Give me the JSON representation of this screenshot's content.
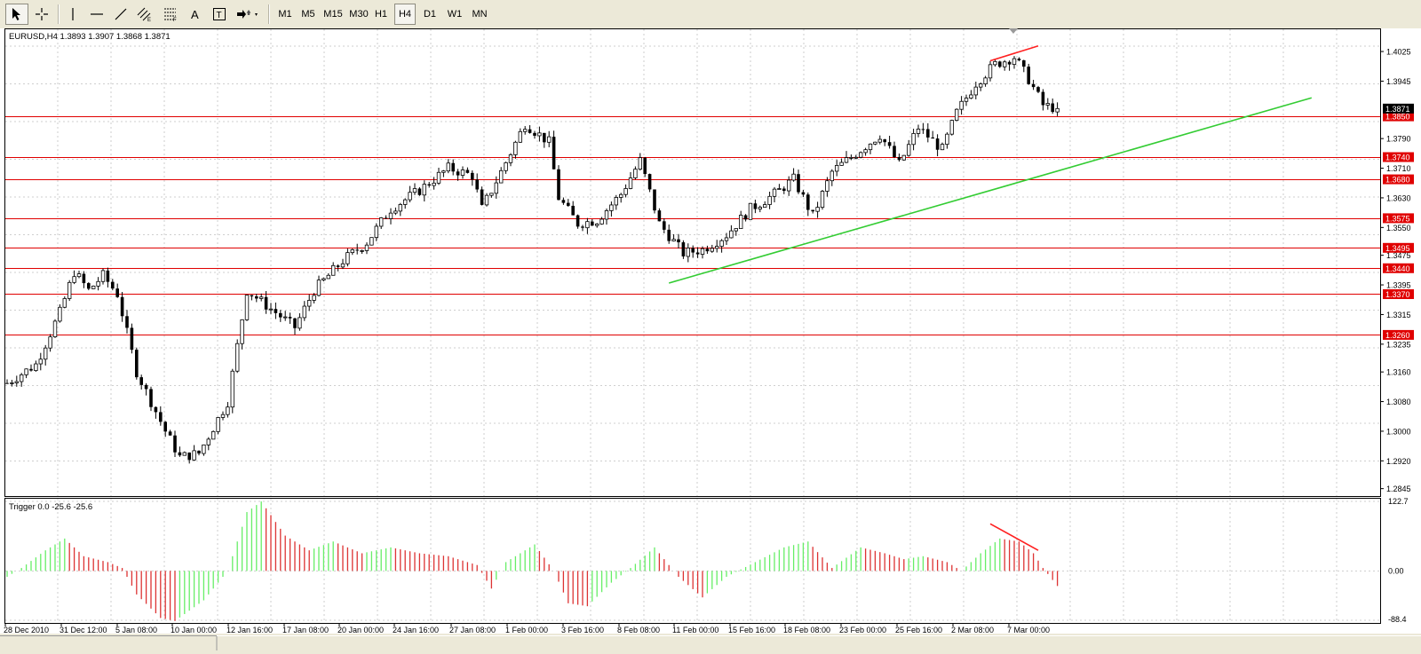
{
  "toolbar": {
    "tools": [
      {
        "name": "cursor-tool",
        "icon": "arrow-cursor-icon"
      },
      {
        "name": "crosshair-tool",
        "icon": "crosshair-icon"
      },
      {
        "name": "vertical-line-tool",
        "icon": "vertical-line-icon"
      },
      {
        "name": "horizontal-line-tool",
        "icon": "horizontal-line-icon"
      },
      {
        "name": "trendline-tool",
        "icon": "trendline-icon"
      },
      {
        "name": "equidistant-channel-tool",
        "icon": "channel-icon"
      },
      {
        "name": "fibonacci-tool",
        "icon": "fibonacci-icon"
      },
      {
        "name": "text-tool",
        "icon": "text-icon",
        "glyph": "A"
      },
      {
        "name": "text-label-tool",
        "icon": "text-label-icon",
        "glyph": "T"
      },
      {
        "name": "arrows-tool",
        "icon": "arrows-icon"
      }
    ],
    "timeframes": [
      "M1",
      "M5",
      "M15",
      "M30",
      "H1",
      "H4",
      "D1",
      "W1",
      "MN"
    ],
    "active_timeframe": "H4"
  },
  "main_chart": {
    "info": "EURUSD,H4  1.3893 1.3907 1.3868 1.3871",
    "current_price": "1.3871"
  },
  "indicator": {
    "label": "Trigger 0.0 -25.6 -25.6"
  },
  "colors": {
    "background": "#ffffff",
    "grid": "#c0c0c0",
    "candle": "#000000",
    "level_line": "#e00000",
    "trendline": "#33cc33",
    "divergence": "#ff2020",
    "hist_up": "#66ee66",
    "hist_down": "#dd3333"
  },
  "chart_data": {
    "type": "candlestick",
    "symbol": "EURUSD",
    "timeframe": "H4",
    "ylim": [
      1.2825,
      1.4085
    ],
    "y_ticks": [
      "1.4025",
      "1.3945",
      "1.3790",
      "1.3710",
      "1.3630",
      "1.3550",
      "1.3475",
      "1.3395",
      "1.3315",
      "1.3235",
      "1.3160",
      "1.3080",
      "1.3000",
      "1.2920",
      "1.2845"
    ],
    "x_ticks": [
      "28 Dec 2010",
      "31 Dec 12:00",
      "5 Jan 08:00",
      "10 Jan 00:00",
      "12 Jan 16:00",
      "17 Jan 08:00",
      "20 Jan 00:00",
      "24 Jan 16:00",
      "27 Jan 08:00",
      "1 Feb 00:00",
      "3 Feb 16:00",
      "8 Feb 08:00",
      "11 Feb 00:00",
      "15 Feb 16:00",
      "18 Feb 08:00",
      "23 Feb 00:00",
      "25 Feb 16:00",
      "2 Mar 08:00",
      "7 Mar 00:00"
    ],
    "horizontal_levels": [
      "1.3850",
      "1.3740",
      "1.3680",
      "1.3575",
      "1.3495",
      "1.3440",
      "1.3370",
      "1.3260"
    ],
    "close_path": [
      {
        "t": 0,
        "p": 1.313
      },
      {
        "t": 6,
        "p": 1.318
      },
      {
        "t": 11,
        "p": 1.332
      },
      {
        "t": 14,
        "p": 1.343
      },
      {
        "t": 17,
        "p": 1.338
      },
      {
        "t": 20,
        "p": 1.342
      },
      {
        "t": 23,
        "p": 1.337
      },
      {
        "t": 27,
        "p": 1.316
      },
      {
        "t": 33,
        "p": 1.3
      },
      {
        "t": 36,
        "p": 1.293
      },
      {
        "t": 40,
        "p": 1.294
      },
      {
        "t": 46,
        "p": 1.308
      },
      {
        "t": 50,
        "p": 1.338
      },
      {
        "t": 55,
        "p": 1.333
      },
      {
        "t": 60,
        "p": 1.328
      },
      {
        "t": 64,
        "p": 1.338
      },
      {
        "t": 70,
        "p": 1.346
      },
      {
        "t": 75,
        "p": 1.351
      },
      {
        "t": 80,
        "p": 1.36
      },
      {
        "t": 86,
        "p": 1.365
      },
      {
        "t": 92,
        "p": 1.371
      },
      {
        "t": 97,
        "p": 1.369
      },
      {
        "t": 99,
        "p": 1.36
      },
      {
        "t": 103,
        "p": 1.37
      },
      {
        "t": 108,
        "p": 1.383
      },
      {
        "t": 113,
        "p": 1.378
      },
      {
        "t": 115,
        "p": 1.363
      },
      {
        "t": 119,
        "p": 1.356
      },
      {
        "t": 123,
        "p": 1.357
      },
      {
        "t": 128,
        "p": 1.364
      },
      {
        "t": 132,
        "p": 1.373
      },
      {
        "t": 136,
        "p": 1.356
      },
      {
        "t": 141,
        "p": 1.348
      },
      {
        "t": 145,
        "p": 1.349
      },
      {
        "t": 150,
        "p": 1.353
      },
      {
        "t": 155,
        "p": 1.36
      },
      {
        "t": 160,
        "p": 1.364
      },
      {
        "t": 164,
        "p": 1.368
      },
      {
        "t": 168,
        "p": 1.358
      },
      {
        "t": 172,
        "p": 1.37
      },
      {
        "t": 177,
        "p": 1.375
      },
      {
        "t": 182,
        "p": 1.38
      },
      {
        "t": 186,
        "p": 1.372
      },
      {
        "t": 190,
        "p": 1.382
      },
      {
        "t": 195,
        "p": 1.376
      },
      {
        "t": 198,
        "p": 1.386
      },
      {
        "t": 202,
        "p": 1.394
      },
      {
        "t": 206,
        "p": 1.399
      },
      {
        "t": 210,
        "p": 1.401
      },
      {
        "t": 213,
        "p": 1.395
      },
      {
        "t": 216,
        "p": 1.388
      },
      {
        "t": 219,
        "p": 1.3871
      }
    ],
    "trendline": {
      "from": {
        "t": 138,
        "p": 1.34
      },
      "to": {
        "t": 272,
        "p": 1.39
      }
    },
    "divergence_price": {
      "from": {
        "t": 205,
        "p": 1.4
      },
      "to": {
        "t": 215,
        "p": 1.404
      }
    },
    "indicator_ylim": [
      -88.4,
      122.7
    ],
    "indicator_ticks": [
      "122.7",
      "0.00",
      "-88.4"
    ],
    "indicator_path": [
      {
        "t": 0,
        "v": -10
      },
      {
        "t": 3,
        "v": 5
      },
      {
        "t": 8,
        "v": 35
      },
      {
        "t": 12,
        "v": 55
      },
      {
        "t": 16,
        "v": 25
      },
      {
        "t": 21,
        "v": 15
      },
      {
        "t": 24,
        "v": 5
      },
      {
        "t": 27,
        "v": -40
      },
      {
        "t": 32,
        "v": -80
      },
      {
        "t": 35,
        "v": -85
      },
      {
        "t": 41,
        "v": -50
      },
      {
        "t": 46,
        "v": 0
      },
      {
        "t": 50,
        "v": 100
      },
      {
        "t": 53,
        "v": 118
      },
      {
        "t": 58,
        "v": 60
      },
      {
        "t": 63,
        "v": 35
      },
      {
        "t": 68,
        "v": 50
      },
      {
        "t": 74,
        "v": 30
      },
      {
        "t": 80,
        "v": 40
      },
      {
        "t": 86,
        "v": 30
      },
      {
        "t": 92,
        "v": 25
      },
      {
        "t": 98,
        "v": 10
      },
      {
        "t": 101,
        "v": -30
      },
      {
        "t": 104,
        "v": 15
      },
      {
        "t": 110,
        "v": 45
      },
      {
        "t": 114,
        "v": 0
      },
      {
        "t": 117,
        "v": -55
      },
      {
        "t": 121,
        "v": -60
      },
      {
        "t": 126,
        "v": -20
      },
      {
        "t": 130,
        "v": 5
      },
      {
        "t": 135,
        "v": 40
      },
      {
        "t": 140,
        "v": -10
      },
      {
        "t": 145,
        "v": -45
      },
      {
        "t": 150,
        "v": -10
      },
      {
        "t": 156,
        "v": 15
      },
      {
        "t": 162,
        "v": 40
      },
      {
        "t": 167,
        "v": 50
      },
      {
        "t": 172,
        "v": 5
      },
      {
        "t": 178,
        "v": 40
      },
      {
        "t": 183,
        "v": 30
      },
      {
        "t": 187,
        "v": 20
      },
      {
        "t": 191,
        "v": 25
      },
      {
        "t": 196,
        "v": 15
      },
      {
        "t": 199,
        "v": 0
      },
      {
        "t": 203,
        "v": 30
      },
      {
        "t": 207,
        "v": 55
      },
      {
        "t": 211,
        "v": 50
      },
      {
        "t": 214,
        "v": 30
      },
      {
        "t": 216,
        "v": 5
      },
      {
        "t": 219,
        "v": -25.6
      }
    ],
    "divergence_indicator": {
      "from": {
        "t": 205,
        "v": 80
      },
      "to": {
        "t": 215,
        "v": 35
      }
    }
  }
}
